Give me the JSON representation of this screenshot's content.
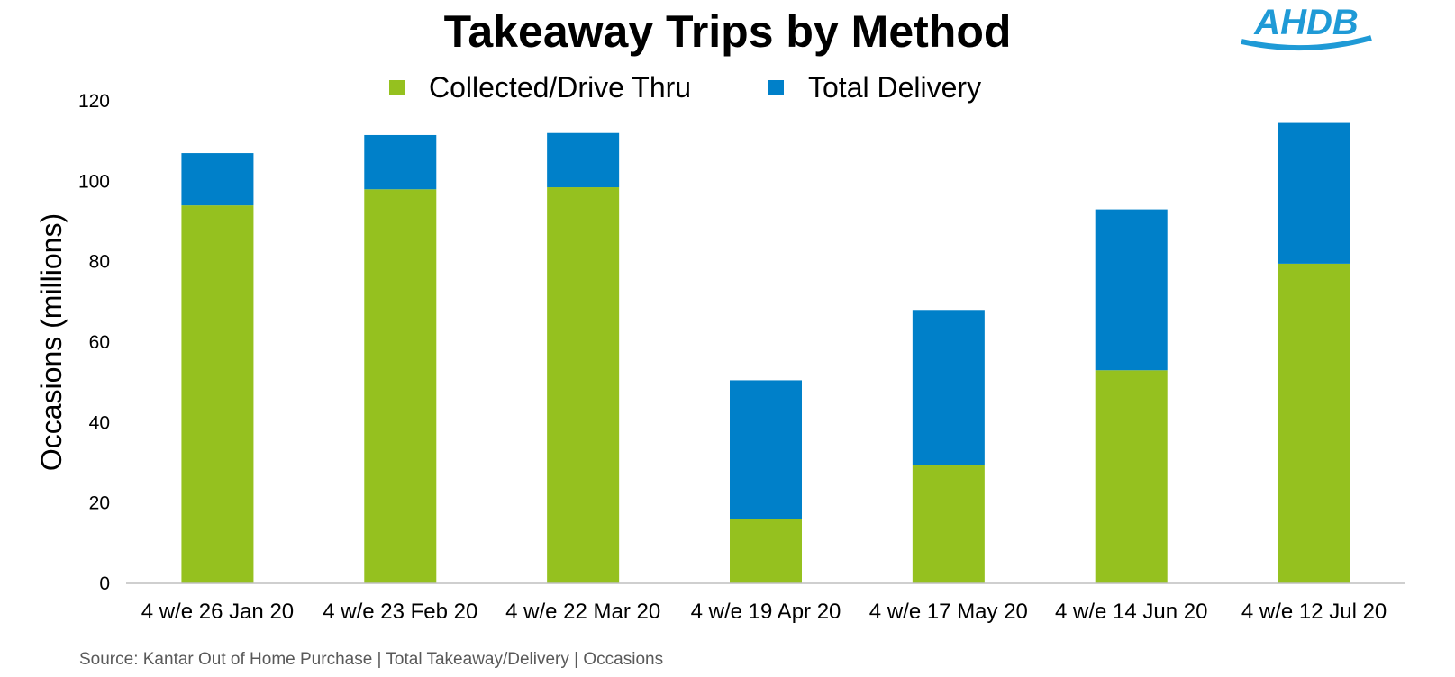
{
  "chart_data": {
    "type": "bar",
    "stacked": true,
    "title": "Takeaway Trips by Method",
    "ylabel": "Occasions (millions)",
    "xlabel": "",
    "ylim": [
      0,
      120
    ],
    "yticks": [
      0,
      20,
      40,
      60,
      80,
      100,
      120
    ],
    "grid": false,
    "legend_position": "top-center",
    "categories": [
      "4 w/e 26 Jan 20",
      "4 w/e 23 Feb 20",
      "4 w/e 22 Mar 20",
      "4 w/e 19 Apr 20",
      "4 w/e 17 May 20",
      "4 w/e 14 Jun 20",
      "4 w/e 12 Jul 20"
    ],
    "series": [
      {
        "name": "Collected/Drive Thru",
        "color": "#95c11f",
        "values": [
          94,
          98,
          98.5,
          16,
          29.5,
          53,
          79.5
        ]
      },
      {
        "name": "Total Delivery",
        "color": "#0080c9",
        "values": [
          13,
          13.5,
          13.5,
          34.5,
          38.5,
          40,
          35
        ]
      }
    ]
  },
  "source": "Source: Kantar Out of Home Purchase | Total Takeaway/Delivery | Occasions",
  "logo": {
    "text": "AHDB",
    "color": "#1f9ad6"
  }
}
